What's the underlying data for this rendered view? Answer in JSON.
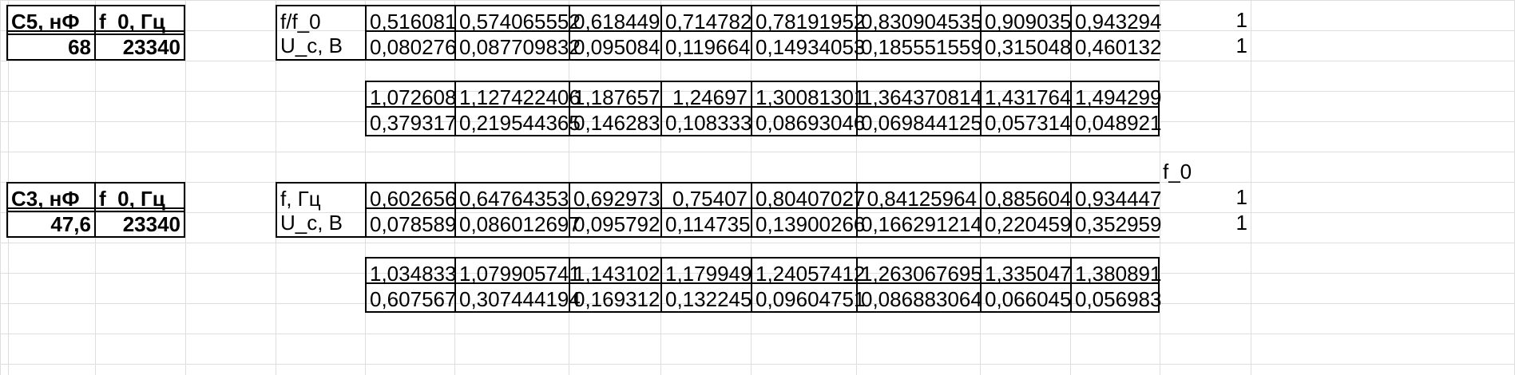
{
  "block1": {
    "param_headers": [
      "C5, нФ",
      "f_0, Гц"
    ],
    "param_values": [
      "68",
      "23340"
    ],
    "row1_label": "f/f_0",
    "row1_values": [
      "0,516081",
      "0,574065552",
      "0,618449",
      "0,714782",
      "0,78191952",
      "0,830904535",
      "0,909035",
      "0,943294",
      "1"
    ],
    "row2_label": "U_c, В",
    "row2_values": [
      "0,080276",
      "0,087709832",
      "0,095084",
      "0,119664",
      "0,14934053",
      "0,185551559",
      "0,315048",
      "0,460132",
      "1"
    ],
    "row3_values": [
      "1,072608",
      "1,127422406",
      "1,187657",
      "1,24697",
      "1,30081301",
      "1,364370814",
      "1,431764",
      "1,494299"
    ],
    "row4_values": [
      "0,379317",
      "0,219544365",
      "0,146283",
      "0,108333",
      "0,08693046",
      "0,069844125",
      "0,057314",
      "0,048921"
    ]
  },
  "block2": {
    "floating_label": "f_0",
    "param_headers": [
      "C3, нФ",
      "f_0, Гц"
    ],
    "param_values": [
      "47,6",
      "23340"
    ],
    "row1_label": "f, Гц",
    "row1_values": [
      "0,602656",
      "0,64764353",
      "0,692973",
      "0,75407",
      "0,80407027",
      "0,84125964",
      "0,885604",
      "0,934447",
      "1"
    ],
    "row2_label": "U_c, В",
    "row2_values": [
      "0,078589",
      "0,086012697",
      "0,095792",
      "0,114735",
      "0,13900266",
      "0,166291214",
      "0,220459",
      "0,352959",
      "1"
    ],
    "row3_values": [
      "1,034833",
      "1,079905741",
      "1,143102",
      "1,179949",
      "1,24057412",
      "1,263067695",
      "1,335047",
      "1,380891"
    ],
    "row4_values": [
      "0,607567",
      "0,307444194",
      "0,169312",
      "0,132245",
      "0,09604751",
      "0,086883064",
      "0,066045",
      "0,056983"
    ]
  }
}
